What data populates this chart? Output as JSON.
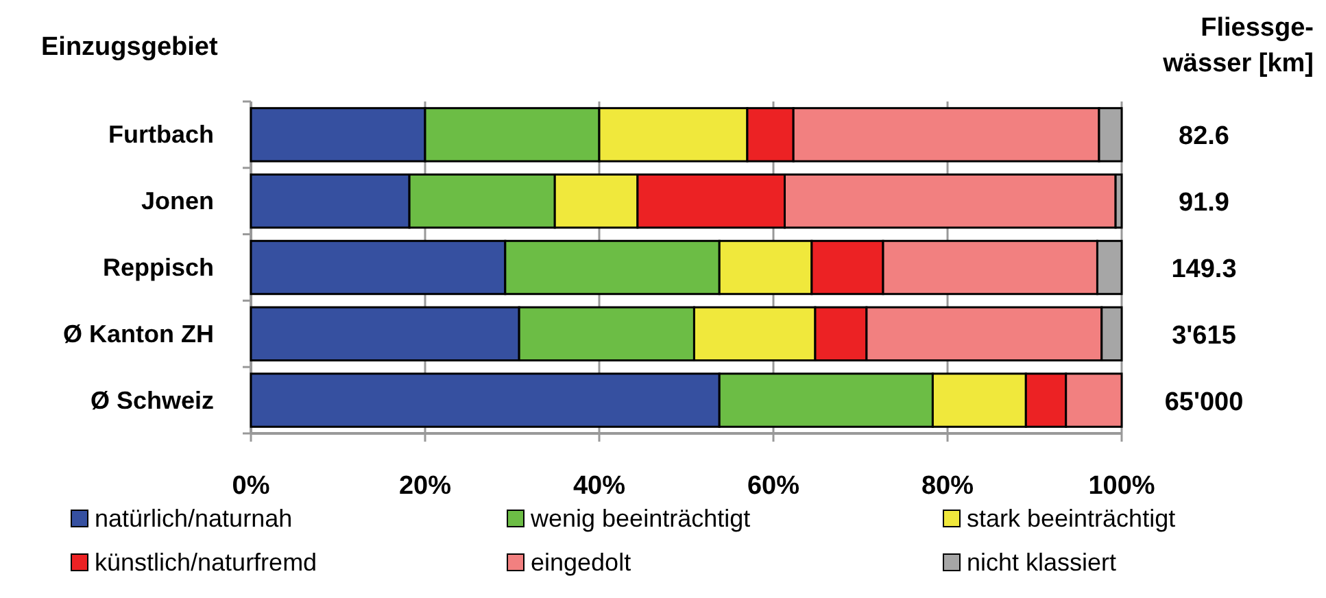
{
  "chart_data": {
    "type": "bar",
    "orientation": "horizontal",
    "stacked": true,
    "title": "Einzugsgebiet",
    "categories": [
      "Furtbach",
      "Jonen",
      "Reppisch",
      "Ø Kanton ZH",
      "Ø Schweiz"
    ],
    "series": [
      {
        "name": "natürlich/naturnah",
        "color": "#3650a0",
        "values": [
          20,
          18.2,
          29.2,
          30.8,
          53.8
        ]
      },
      {
        "name": "wenig beeinträchtigt",
        "color": "#6cbd45",
        "values": [
          20,
          16.7,
          24.6,
          20.1,
          24.5
        ]
      },
      {
        "name": "stark beeinträchtigt",
        "color": "#f0e83c",
        "values": [
          17,
          9.5,
          10.6,
          13.9,
          10.7
        ]
      },
      {
        "name": "künstlich/naturfremd",
        "color": "#ec2224",
        "values": [
          5.3,
          16.9,
          8.2,
          5.9,
          4.6
        ]
      },
      {
        "name": "eingedolt",
        "color": "#f28080",
        "values": [
          35.1,
          38,
          24.6,
          27,
          6.4
        ]
      },
      {
        "name": "nicht klassiert",
        "color": "#a6a6a6",
        "values": [
          2.6,
          0.7,
          2.8,
          2.3,
          0
        ]
      }
    ],
    "xlim": [
      0,
      100
    ],
    "xticks": [
      {
        "value": 0,
        "label": "0%"
      },
      {
        "value": 20,
        "label": "20%"
      },
      {
        "value": 40,
        "label": "40%"
      },
      {
        "value": 60,
        "label": "60%"
      },
      {
        "value": 80,
        "label": "80%"
      },
      {
        "value": 100,
        "label": "100%"
      }
    ],
    "grid": "x",
    "legend": "bottom",
    "annotations": [
      "Fliessge-\nwässer [km]",
      "82.6",
      "91.9",
      "149.3",
      "3'615",
      "65'000"
    ]
  }
}
